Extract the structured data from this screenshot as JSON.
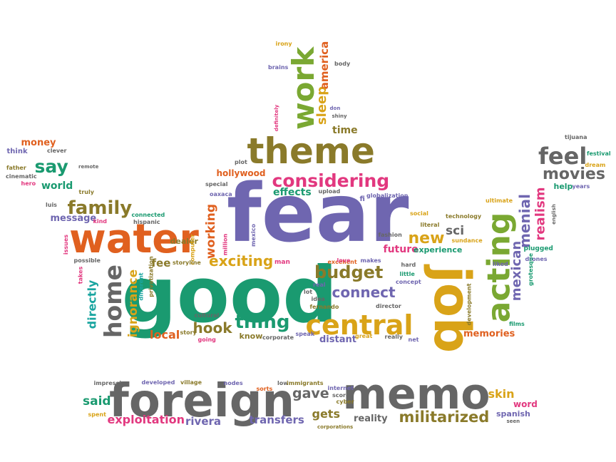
{
  "palette": {
    "purple": "#6f66b0",
    "orange": "#e0601f",
    "olive": "#8a7a2a",
    "green": "#1a9a70",
    "gold": "#d9a318",
    "gray": "#666666",
    "lime": "#7aa832",
    "pink": "#e2387f",
    "teal": "#1aa5a0"
  },
  "words": [
    {
      "text": "fear",
      "color": "purple"
    },
    {
      "text": "good",
      "color": "green"
    },
    {
      "text": "water",
      "color": "orange"
    },
    {
      "text": "theme",
      "color": "olive"
    },
    {
      "text": "work",
      "color": "lime"
    },
    {
      "text": "job",
      "color": "gold"
    },
    {
      "text": "acting",
      "color": "lime"
    },
    {
      "text": "foreign",
      "color": "gray"
    },
    {
      "text": "memo",
      "color": "gray"
    },
    {
      "text": "central",
      "color": "gold"
    },
    {
      "text": "considering",
      "color": "pink"
    },
    {
      "text": "family",
      "color": "olive"
    },
    {
      "text": "home",
      "color": "gray"
    },
    {
      "text": "budget",
      "color": "olive"
    },
    {
      "text": "thing",
      "color": "green"
    },
    {
      "text": "feel",
      "color": "gray"
    },
    {
      "text": "movies",
      "color": "gray"
    },
    {
      "text": "say",
      "color": "green"
    },
    {
      "text": "exciting",
      "color": "gold"
    },
    {
      "text": "connect",
      "color": "purple"
    },
    {
      "text": "new",
      "color": "gold"
    },
    {
      "text": "sci",
      "color": "gray"
    },
    {
      "text": "hook",
      "color": "olive"
    },
    {
      "text": "local",
      "color": "orange"
    },
    {
      "text": "mexican",
      "color": "purple"
    },
    {
      "text": "menial",
      "color": "purple"
    },
    {
      "text": "realism",
      "color": "pink"
    },
    {
      "text": "ignorance",
      "color": "gold"
    },
    {
      "text": "directly",
      "color": "teal"
    },
    {
      "text": "working",
      "color": "orange"
    },
    {
      "text": "sleep",
      "color": "gold"
    },
    {
      "text": "america",
      "color": "orange"
    },
    {
      "text": "time",
      "color": "olive"
    },
    {
      "text": "effects",
      "color": "green"
    },
    {
      "text": "hollywood",
      "color": "orange"
    },
    {
      "text": "future",
      "color": "pink"
    },
    {
      "text": "experience",
      "color": "green"
    },
    {
      "text": "memories",
      "color": "orange"
    },
    {
      "text": "distant",
      "color": "purple"
    },
    {
      "text": "fee",
      "color": "olive"
    },
    {
      "text": "money",
      "color": "orange"
    },
    {
      "text": "world",
      "color": "green"
    },
    {
      "text": "message",
      "color": "purple"
    },
    {
      "text": "said",
      "color": "green"
    },
    {
      "text": "exploitation",
      "color": "pink"
    },
    {
      "text": "rivera",
      "color": "purple"
    },
    {
      "text": "transfers",
      "color": "purple"
    },
    {
      "text": "gets",
      "color": "olive"
    },
    {
      "text": "gave",
      "color": "gray"
    },
    {
      "text": "reality",
      "color": "gray"
    },
    {
      "text": "militarized",
      "color": "olive"
    },
    {
      "text": "skin",
      "color": "gold"
    },
    {
      "text": "word",
      "color": "pink"
    },
    {
      "text": "spanish",
      "color": "purple"
    },
    {
      "text": "help",
      "color": "green"
    },
    {
      "text": "years",
      "color": "purple"
    },
    {
      "text": "know",
      "color": "olive"
    },
    {
      "text": "dealer",
      "color": "olive"
    },
    {
      "text": "think",
      "color": "purple"
    },
    {
      "text": "clever",
      "color": "gray"
    },
    {
      "text": "father",
      "color": "olive"
    },
    {
      "text": "remote",
      "color": "gray"
    },
    {
      "text": "cinematic",
      "color": "gray"
    },
    {
      "text": "hero",
      "color": "pink"
    },
    {
      "text": "truly",
      "color": "olive"
    },
    {
      "text": "luis",
      "color": "gray"
    },
    {
      "text": "kind",
      "color": "pink"
    },
    {
      "text": "issues",
      "color": "pink"
    },
    {
      "text": "possible",
      "color": "gray"
    },
    {
      "text": "takes",
      "color": "pink"
    },
    {
      "text": "different",
      "color": "teal"
    },
    {
      "text": "privatization",
      "color": "olive"
    },
    {
      "text": "connected",
      "color": "green"
    },
    {
      "text": "hispanic",
      "color": "gray"
    },
    {
      "text": "computer",
      "color": "gold"
    },
    {
      "text": "million",
      "color": "pink"
    },
    {
      "text": "mexico",
      "color": "purple"
    },
    {
      "text": "storyline",
      "color": "olive"
    },
    {
      "text": "man",
      "color": "pink"
    },
    {
      "text": "cultural",
      "color": "gray"
    },
    {
      "text": "story",
      "color": "olive"
    },
    {
      "text": "going",
      "color": "pink"
    },
    {
      "text": "corporate",
      "color": "gray"
    },
    {
      "text": "speak",
      "color": "purple"
    },
    {
      "text": "great",
      "color": "gold"
    },
    {
      "text": "really",
      "color": "gray"
    },
    {
      "text": "net",
      "color": "purple"
    },
    {
      "text": "idea",
      "color": "gray"
    },
    {
      "text": "fernando",
      "color": "olive"
    },
    {
      "text": "lot",
      "color": "gray"
    },
    {
      "text": "real",
      "color": "purple"
    },
    {
      "text": "excellent",
      "color": "orange"
    },
    {
      "text": "makes",
      "color": "purple"
    },
    {
      "text": "love",
      "color": "pink"
    },
    {
      "text": "director",
      "color": "gray"
    },
    {
      "text": "concept",
      "color": "purple"
    },
    {
      "text": "little",
      "color": "green"
    },
    {
      "text": "hard",
      "color": "gray"
    },
    {
      "text": "literal",
      "color": "olive"
    },
    {
      "text": "social",
      "color": "gold"
    },
    {
      "text": "fashion",
      "color": "gray"
    },
    {
      "text": "sundance",
      "color": "gold"
    },
    {
      "text": "technology",
      "color": "olive"
    },
    {
      "text": "ultimate",
      "color": "gold"
    },
    {
      "text": "globalization",
      "color": "purple"
    },
    {
      "text": "fi",
      "color": "purple"
    },
    {
      "text": "upload",
      "color": "gray"
    },
    {
      "text": "oaxaca",
      "color": "purple"
    },
    {
      "text": "special",
      "color": "gray"
    },
    {
      "text": "plot",
      "color": "gray"
    },
    {
      "text": "don",
      "color": "purple"
    },
    {
      "text": "shiny",
      "color": "gray"
    },
    {
      "text": "definitely",
      "color": "pink"
    },
    {
      "text": "body",
      "color": "gray"
    },
    {
      "text": "brains",
      "color": "purple"
    },
    {
      "text": "irony",
      "color": "gold"
    },
    {
      "text": "tijuana",
      "color": "gray"
    },
    {
      "text": "festival",
      "color": "green"
    },
    {
      "text": "dream",
      "color": "gold"
    },
    {
      "text": "english",
      "color": "gray"
    },
    {
      "text": "plugged",
      "color": "green"
    },
    {
      "text": "drones",
      "color": "purple"
    },
    {
      "text": "grotesque",
      "color": "green"
    },
    {
      "text": "liked",
      "color": "purple"
    },
    {
      "text": "films",
      "color": "green"
    },
    {
      "text": "development",
      "color": "olive"
    },
    {
      "text": "impressive",
      "color": "gray"
    },
    {
      "text": "developed",
      "color": "purple"
    },
    {
      "text": "village",
      "color": "olive"
    },
    {
      "text": "nodes",
      "color": "purple"
    },
    {
      "text": "sorts",
      "color": "orange"
    },
    {
      "text": "low",
      "color": "gray"
    },
    {
      "text": "immigrants",
      "color": "olive"
    },
    {
      "text": "internet",
      "color": "purple"
    },
    {
      "text": "score",
      "color": "gray"
    },
    {
      "text": "cyber",
      "color": "olive"
    },
    {
      "text": "corporations",
      "color": "olive"
    },
    {
      "text": "spent",
      "color": "gold"
    },
    {
      "text": "seen",
      "color": "gray"
    }
  ]
}
